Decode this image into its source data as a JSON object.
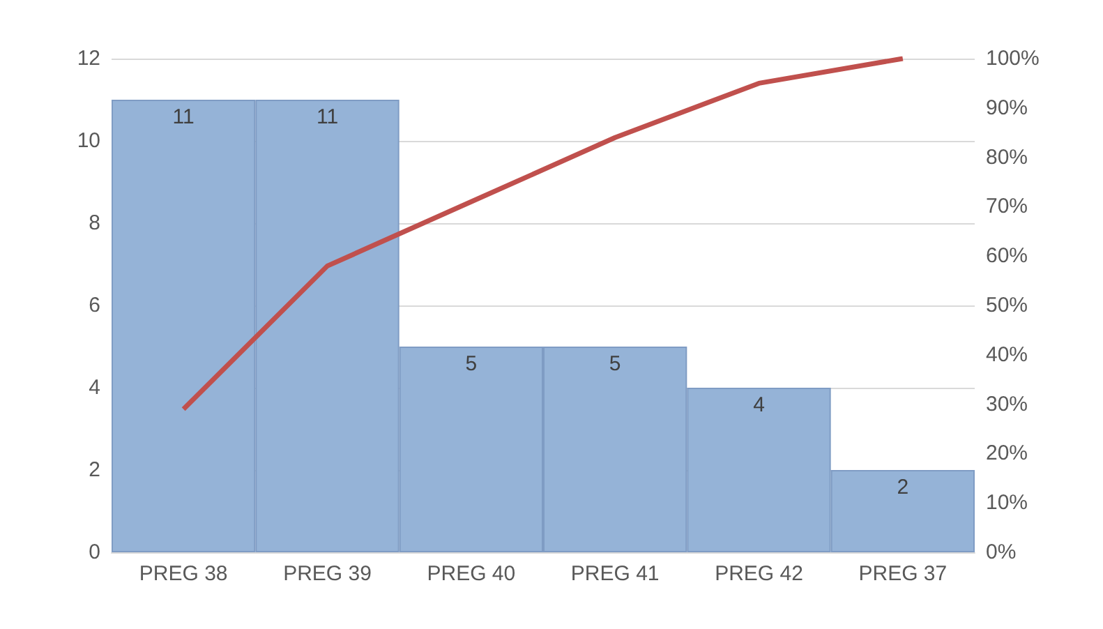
{
  "chart_data": {
    "type": "bar",
    "categories": [
      "PREG 38",
      "PREG 39",
      "PREG 40",
      "PREG 41",
      "PREG 42",
      "PREG 37"
    ],
    "series": [
      {
        "color": "#95b3d7",
        "values": [
          11,
          11,
          5,
          5,
          4,
          2
        ],
        "value_labels": [
          "11",
          "11",
          "5",
          "5",
          "4",
          "2"
        ]
      },
      {
        "type": "line",
        "axis": "y2",
        "color": "#c0504d",
        "values": [
          29,
          58,
          71,
          84,
          95,
          100
        ]
      }
    ],
    "marker": "none",
    "grid": "y",
    "ylim": [
      0,
      12
    ],
    "yticks": [
      0,
      2,
      4,
      6,
      8,
      10,
      12
    ],
    "y2lim": [
      0,
      100
    ],
    "y2ticks": [
      {
        "value": 0,
        "label": "0%"
      },
      {
        "value": 10,
        "label": "10%"
      },
      {
        "value": 20,
        "label": "20%"
      },
      {
        "value": 30,
        "label": "30%"
      },
      {
        "value": 40,
        "label": "40%"
      },
      {
        "value": 50,
        "label": "50%"
      },
      {
        "value": 60,
        "label": "60%"
      },
      {
        "value": 70,
        "label": "70%"
      },
      {
        "value": 80,
        "label": "80%"
      },
      {
        "value": 90,
        "label": "90%"
      },
      {
        "value": 100,
        "label": "100%"
      }
    ]
  }
}
